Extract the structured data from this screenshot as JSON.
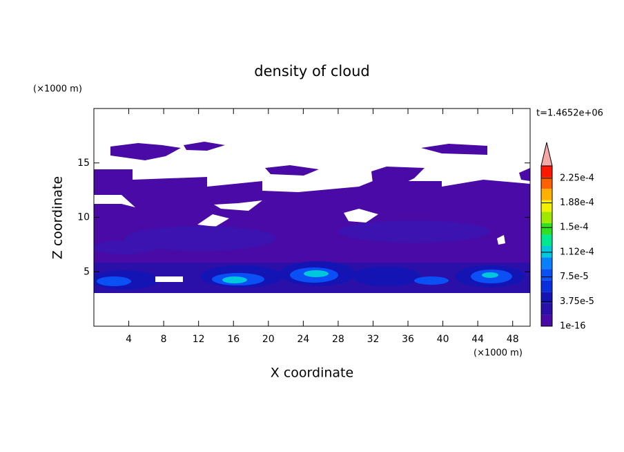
{
  "chart_data": {
    "type": "contour",
    "title": "density of cloud",
    "xlabel": "X coordinate",
    "ylabel": "Z coordinate",
    "x_unit": "(×1000 m)",
    "y_unit": "(×1000 m)",
    "annotation": "t=1.4652e+06",
    "xlim": [
      0,
      50
    ],
    "ylim": [
      0,
      20
    ],
    "xticks": [
      4,
      8,
      12,
      16,
      20,
      24,
      28,
      32,
      36,
      40,
      44,
      48
    ],
    "yticks": [
      5,
      10,
      15
    ],
    "colorbar": {
      "clim": [
        0,
        0.00024375
      ],
      "colors": [
        "#4a0aa6",
        "#2a10a8",
        "#1414b4",
        "#0a30dc",
        "#0a50f5",
        "#0a80ff",
        "#00c8dc",
        "#00e890",
        "#30e020",
        "#a0e800",
        "#f0f000",
        "#ffb000",
        "#ff6000",
        "#ff1800"
      ],
      "extend_color": "#f4a8a8",
      "ticks": [
        {
          "value": 1e-16,
          "label": "1e-16"
        },
        {
          "value": 3.75e-05,
          "label": "3.75e-5"
        },
        {
          "value": 7.5e-05,
          "label": "7.5e-5"
        },
        {
          "value": 0.0001125,
          "label": "1.12e-4"
        },
        {
          "value": 0.00015,
          "label": "1.5e-4"
        },
        {
          "value": 0.0001875,
          "label": "1.88e-4"
        },
        {
          "value": 0.000225,
          "label": "2.25e-4"
        }
      ]
    }
  }
}
